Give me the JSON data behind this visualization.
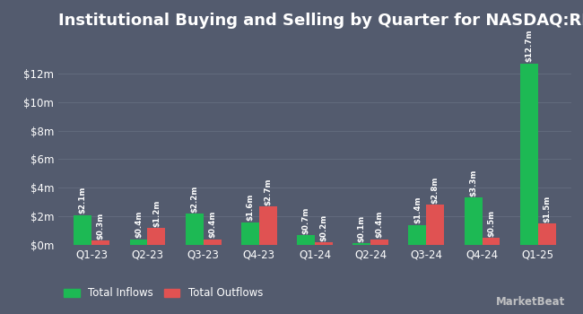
{
  "title": "Institutional Buying and Selling by Quarter for NASDAQ:RFEM",
  "quarters": [
    "Q1-23",
    "Q2-23",
    "Q3-23",
    "Q4-23",
    "Q1-24",
    "Q2-24",
    "Q3-24",
    "Q4-24",
    "Q1-25"
  ],
  "inflows": [
    2.1,
    0.4,
    2.2,
    1.6,
    0.7,
    0.1,
    1.4,
    3.3,
    12.7
  ],
  "outflows": [
    0.3,
    1.2,
    0.4,
    2.7,
    0.2,
    0.4,
    2.8,
    0.5,
    1.5
  ],
  "inflow_labels": [
    "$2.1m",
    "$0.4m",
    "$2.2m",
    "$1.6m",
    "$0.7m",
    "$0.1m",
    "$1.4m",
    "$3.3m",
    "$12.7m"
  ],
  "outflow_labels": [
    "$0.3m",
    "$1.2m",
    "$0.4m",
    "$2.7m",
    "$0.2m",
    "$0.4m",
    "$2.8m",
    "$0.5m",
    "$1.5m"
  ],
  "inflow_color": "#1db954",
  "outflow_color": "#e05252",
  "background_color": "#535b6e",
  "text_color": "#ffffff",
  "grid_color": "#626b7d",
  "yticks": [
    0,
    2,
    4,
    6,
    8,
    10,
    12
  ],
  "ytick_labels": [
    "$0m",
    "$2m",
    "$4m",
    "$6m",
    "$8m",
    "$10m",
    "$12m"
  ],
  "ylim": [
    0,
    14.5
  ],
  "bar_width": 0.32,
  "legend_inflow": "Total Inflows",
  "legend_outflow": "Total Outflows",
  "title_fontsize": 13,
  "label_fontsize": 6.2,
  "tick_fontsize": 8.5,
  "legend_fontsize": 8.5,
  "watermark": "MarketBeat"
}
